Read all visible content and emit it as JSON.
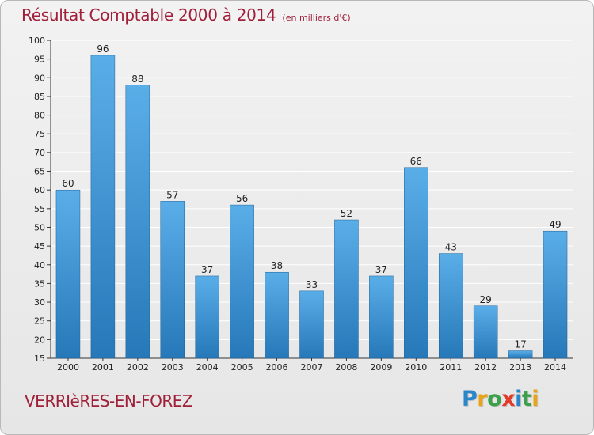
{
  "header": {
    "title": "Résultat Comptable 2000 à 2014",
    "unit": "(en milliers d'€)"
  },
  "commune": "VERRIèRES-EN-FOREZ",
  "logo": {
    "text": "Proxiti",
    "letters": [
      {
        "ch": "P",
        "color": "#2a86c8"
      },
      {
        "ch": "r",
        "color": "#e8a317"
      },
      {
        "ch": "o",
        "color": "#3aa14a"
      },
      {
        "ch": "x",
        "color": "#e23b2a"
      },
      {
        "ch": "i",
        "color": "#2a86c8"
      },
      {
        "ch": "t",
        "color": "#3aa14a"
      },
      {
        "ch": "i",
        "color": "#e8a317"
      }
    ]
  },
  "colors": {
    "bar_top": "#5aaee8",
    "bar_bottom": "#2678b8",
    "bar_edge": "#1d5f95",
    "title": "#a0203a",
    "grid": "#ffffff",
    "axis": "#333333"
  },
  "chart_data": {
    "type": "bar",
    "categories": [
      "2000",
      "2001",
      "2002",
      "2003",
      "2004",
      "2005",
      "2006",
      "2007",
      "2008",
      "2009",
      "2010",
      "2011",
      "2012",
      "2013",
      "2014"
    ],
    "values": [
      60,
      96,
      88,
      57,
      37,
      56,
      38,
      33,
      52,
      37,
      66,
      43,
      29,
      17,
      49
    ],
    "ylim": [
      15,
      100
    ],
    "yticks": [
      15,
      20,
      25,
      30,
      35,
      40,
      45,
      50,
      55,
      60,
      65,
      70,
      75,
      80,
      85,
      90,
      95,
      100
    ],
    "grid": true,
    "data_labels": true
  }
}
